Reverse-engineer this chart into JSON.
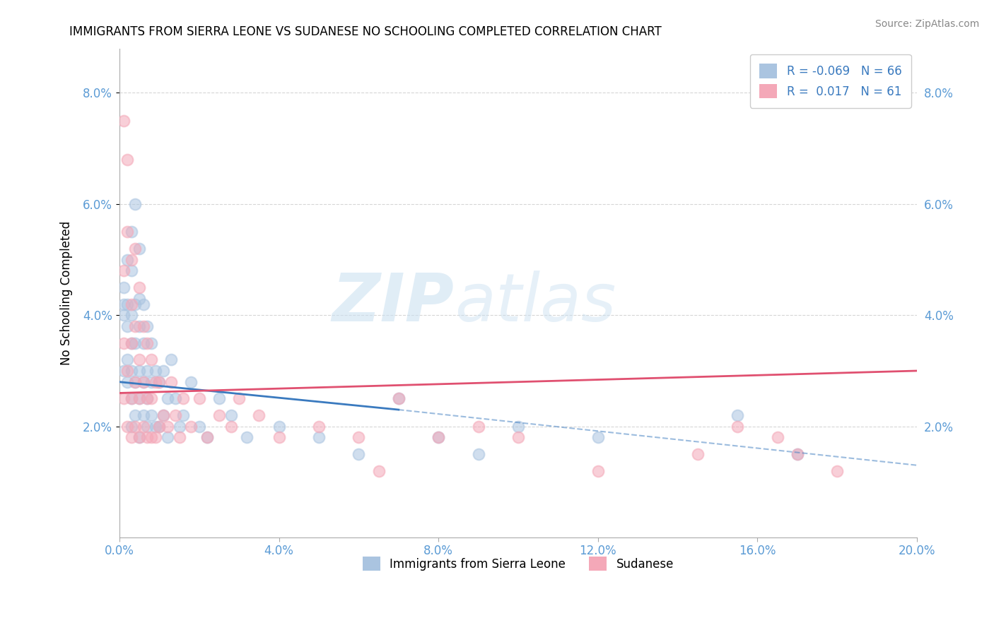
{
  "title": "IMMIGRANTS FROM SIERRA LEONE VS SUDANESE NO SCHOOLING COMPLETED CORRELATION CHART",
  "source": "Source: ZipAtlas.com",
  "xlabel_blue": "Immigrants from Sierra Leone",
  "xlabel_pink": "Sudanese",
  "ylabel": "No Schooling Completed",
  "legend_blue_R": "-0.069",
  "legend_blue_N": "66",
  "legend_pink_R": "0.017",
  "legend_pink_N": "61",
  "xlim": [
    0.0,
    0.2
  ],
  "ylim": [
    0.0,
    0.088
  ],
  "xticks": [
    0.0,
    0.04,
    0.08,
    0.12,
    0.16,
    0.2
  ],
  "yticks": [
    0.02,
    0.04,
    0.06,
    0.08
  ],
  "ytick_labels": [
    "2.0%",
    "4.0%",
    "6.0%",
    "8.0%"
  ],
  "xtick_labels": [
    "0.0%",
    "4.0%",
    "8.0%",
    "12.0%",
    "16.0%",
    "20.0%"
  ],
  "color_blue": "#aac4e0",
  "color_pink": "#f4a8b8",
  "watermark_zip": "ZIP",
  "watermark_atlas": "atlas",
  "blue_x": [
    0.001,
    0.001,
    0.001,
    0.001,
    0.002,
    0.002,
    0.002,
    0.002,
    0.002,
    0.003,
    0.003,
    0.003,
    0.003,
    0.003,
    0.003,
    0.003,
    0.004,
    0.004,
    0.004,
    0.004,
    0.004,
    0.005,
    0.005,
    0.005,
    0.005,
    0.005,
    0.005,
    0.006,
    0.006,
    0.006,
    0.006,
    0.007,
    0.007,
    0.007,
    0.007,
    0.008,
    0.008,
    0.008,
    0.009,
    0.009,
    0.01,
    0.01,
    0.011,
    0.011,
    0.012,
    0.012,
    0.013,
    0.014,
    0.015,
    0.016,
    0.018,
    0.02,
    0.022,
    0.025,
    0.028,
    0.032,
    0.04,
    0.05,
    0.06,
    0.07,
    0.08,
    0.09,
    0.1,
    0.12,
    0.155,
    0.17
  ],
  "blue_y": [
    0.03,
    0.04,
    0.042,
    0.045,
    0.028,
    0.032,
    0.038,
    0.042,
    0.05,
    0.02,
    0.025,
    0.03,
    0.035,
    0.04,
    0.048,
    0.055,
    0.022,
    0.028,
    0.035,
    0.042,
    0.06,
    0.018,
    0.025,
    0.03,
    0.038,
    0.043,
    0.052,
    0.022,
    0.028,
    0.035,
    0.042,
    0.02,
    0.025,
    0.03,
    0.038,
    0.022,
    0.028,
    0.035,
    0.02,
    0.03,
    0.02,
    0.028,
    0.022,
    0.03,
    0.018,
    0.025,
    0.032,
    0.025,
    0.02,
    0.022,
    0.028,
    0.02,
    0.018,
    0.025,
    0.022,
    0.018,
    0.02,
    0.018,
    0.015,
    0.025,
    0.018,
    0.015,
    0.02,
    0.018,
    0.022,
    0.015
  ],
  "pink_x": [
    0.001,
    0.001,
    0.001,
    0.001,
    0.002,
    0.002,
    0.002,
    0.002,
    0.003,
    0.003,
    0.003,
    0.003,
    0.003,
    0.004,
    0.004,
    0.004,
    0.004,
    0.005,
    0.005,
    0.005,
    0.005,
    0.006,
    0.006,
    0.006,
    0.007,
    0.007,
    0.007,
    0.008,
    0.008,
    0.008,
    0.009,
    0.009,
    0.01,
    0.01,
    0.011,
    0.012,
    0.013,
    0.014,
    0.015,
    0.016,
    0.018,
    0.02,
    0.022,
    0.025,
    0.028,
    0.03,
    0.035,
    0.04,
    0.05,
    0.06,
    0.065,
    0.07,
    0.08,
    0.09,
    0.1,
    0.12,
    0.145,
    0.155,
    0.165,
    0.17,
    0.18
  ],
  "pink_y": [
    0.025,
    0.035,
    0.048,
    0.075,
    0.02,
    0.03,
    0.055,
    0.068,
    0.018,
    0.025,
    0.035,
    0.042,
    0.05,
    0.02,
    0.028,
    0.038,
    0.052,
    0.018,
    0.025,
    0.032,
    0.045,
    0.02,
    0.028,
    0.038,
    0.018,
    0.025,
    0.035,
    0.018,
    0.025,
    0.032,
    0.018,
    0.028,
    0.02,
    0.028,
    0.022,
    0.02,
    0.028,
    0.022,
    0.018,
    0.025,
    0.02,
    0.025,
    0.018,
    0.022,
    0.02,
    0.025,
    0.022,
    0.018,
    0.02,
    0.018,
    0.012,
    0.025,
    0.018,
    0.02,
    0.018,
    0.012,
    0.015,
    0.02,
    0.018,
    0.015,
    0.012
  ],
  "blue_line_x0": 0.0,
  "blue_line_y0": 0.028,
  "blue_line_x_solid_end": 0.07,
  "blue_line_y_solid_end": 0.023,
  "blue_line_x_dash_end": 0.2,
  "blue_line_y_dash_end": 0.013,
  "pink_line_x0": 0.0,
  "pink_line_y0": 0.026,
  "pink_line_x_end": 0.2,
  "pink_line_y_end": 0.03
}
